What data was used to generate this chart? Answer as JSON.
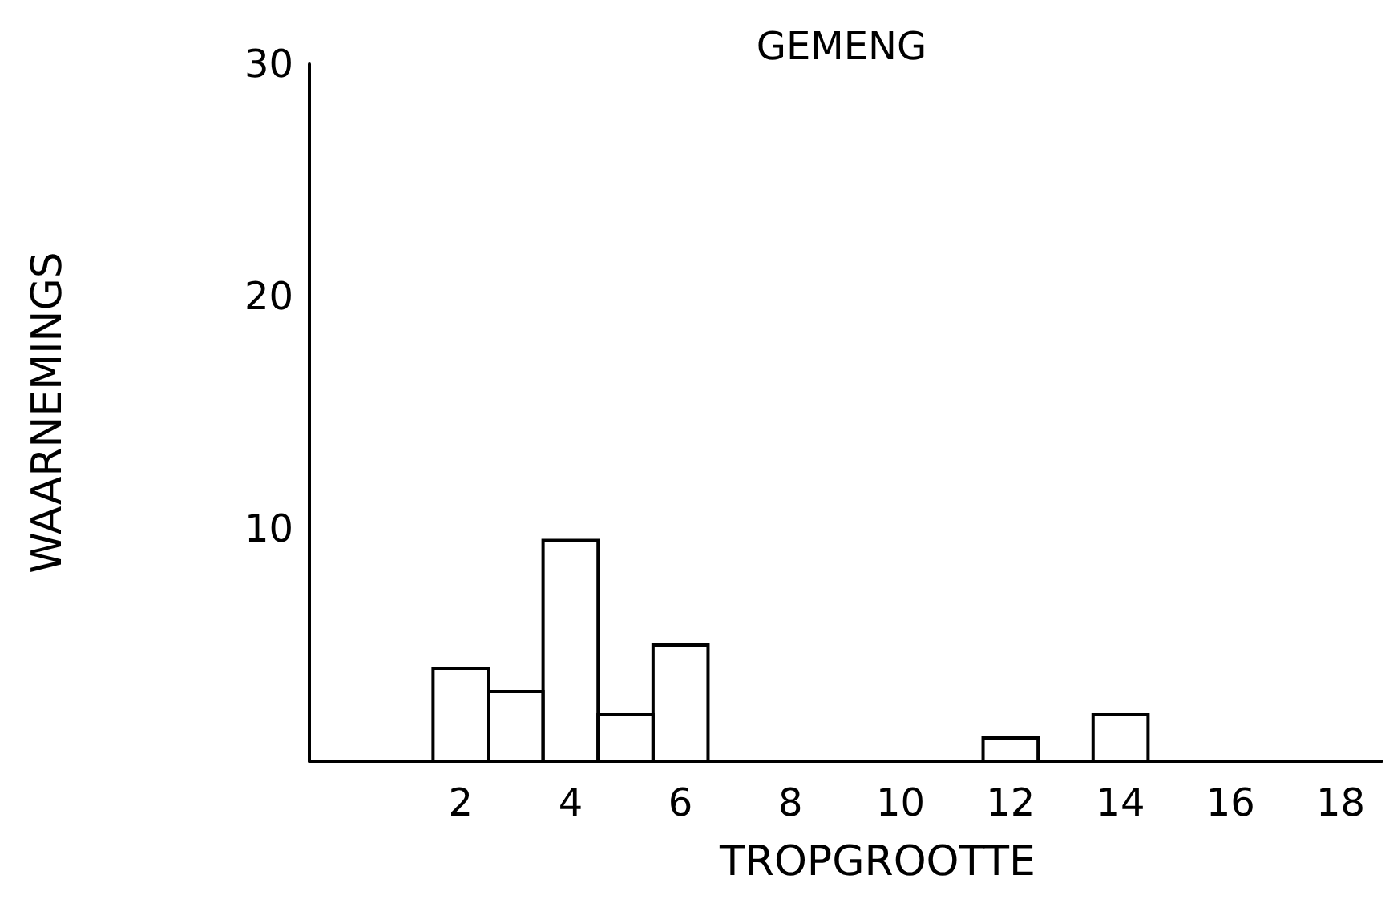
{
  "chart_data": {
    "type": "histogram",
    "title": "GEMENG",
    "xlabel": "TROPGROOTTE",
    "ylabel": "WAARNEMINGS",
    "bins": [
      1.5,
      2.5,
      3.5,
      4.5,
      5.5,
      6.5,
      7.5,
      8.5,
      9.5,
      10.5,
      11.5,
      12.5,
      13.5,
      14.5
    ],
    "values": [
      4,
      3,
      9.5,
      2,
      5,
      0,
      0,
      0,
      0,
      0,
      1,
      0,
      2
    ],
    "color": "#000000",
    "xlim": [
      -0.75,
      18.75
    ],
    "xticks": [
      2,
      4,
      6,
      8,
      10,
      12,
      14,
      16,
      18
    ],
    "ylim": [
      0,
      30
    ],
    "yticks": [
      10,
      20,
      30
    ],
    "grid": false
  }
}
